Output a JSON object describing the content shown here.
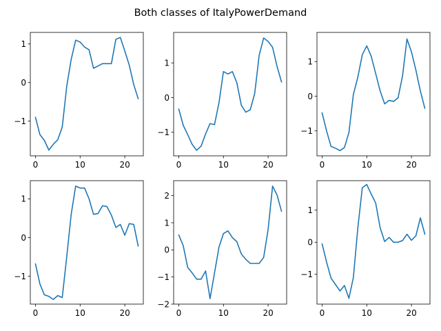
{
  "figure": {
    "title": "Both classes of ItalyPowerDemand"
  },
  "chart_data": [
    {
      "type": "line",
      "title": "",
      "xlabel": "",
      "ylabel": "",
      "xlim": [
        -1.15,
        24.15
      ],
      "ylim": [
        -1.9,
        1.3
      ],
      "xticks": [
        0,
        10,
        20
      ],
      "xtick_labels": [
        "0",
        "10",
        "20"
      ],
      "yticks": [
        -1,
        0,
        1
      ],
      "ytick_labels": [
        "−1",
        "0",
        "1"
      ],
      "grid": false,
      "series": [
        {
          "color": "#1f77b4",
          "x": [
            0,
            1,
            2,
            3,
            4,
            5,
            6,
            7,
            8,
            9,
            10,
            11,
            12,
            13,
            14,
            15,
            16,
            17,
            18,
            19,
            20,
            21,
            22,
            23
          ],
          "values": [
            -0.9,
            -1.35,
            -1.5,
            -1.75,
            -1.6,
            -1.48,
            -1.15,
            -0.1,
            0.6,
            1.1,
            1.05,
            0.92,
            0.85,
            0.37,
            0.43,
            0.49,
            0.49,
            0.49,
            1.12,
            1.17,
            0.82,
            0.45,
            -0.05,
            -0.42
          ]
        }
      ]
    },
    {
      "type": "line",
      "title": "",
      "xlabel": "",
      "ylabel": "",
      "xlim": [
        -1.15,
        24.15
      ],
      "ylim": [
        -1.68,
        1.88
      ],
      "xticks": [
        0,
        10,
        20
      ],
      "xtick_labels": [
        "0",
        "10",
        "20"
      ],
      "yticks": [
        -1,
        0,
        1
      ],
      "ytick_labels": [
        "−1",
        "0",
        "1"
      ],
      "grid": false,
      "series": [
        {
          "color": "#1f77b4",
          "x": [
            0,
            1,
            2,
            3,
            4,
            5,
            6,
            7,
            8,
            9,
            10,
            11,
            12,
            13,
            14,
            15,
            16,
            17,
            18,
            19,
            20,
            21,
            22,
            23
          ],
          "values": [
            -0.33,
            -0.8,
            -1.07,
            -1.35,
            -1.52,
            -1.4,
            -1.05,
            -0.75,
            -0.78,
            -0.15,
            0.75,
            0.68,
            0.75,
            0.43,
            -0.22,
            -0.42,
            -0.35,
            0.12,
            1.22,
            1.72,
            1.62,
            1.45,
            0.9,
            0.45
          ]
        }
      ]
    },
    {
      "type": "line",
      "title": "",
      "xlabel": "",
      "ylabel": "",
      "xlim": [
        -1.15,
        24.15
      ],
      "ylim": [
        -1.72,
        1.84
      ],
      "xticks": [
        0,
        10,
        20
      ],
      "xtick_labels": [
        "0",
        "10",
        "20"
      ],
      "yticks": [
        -1,
        0,
        1
      ],
      "ytick_labels": [
        "−1",
        "0",
        "1"
      ],
      "grid": false,
      "series": [
        {
          "color": "#1f77b4",
          "x": [
            0,
            1,
            2,
            3,
            4,
            5,
            6,
            7,
            8,
            9,
            10,
            11,
            12,
            13,
            14,
            15,
            16,
            17,
            18,
            19,
            20,
            21,
            22,
            23
          ],
          "values": [
            -0.48,
            -1.0,
            -1.45,
            -1.5,
            -1.57,
            -1.48,
            -1.05,
            0.05,
            0.55,
            1.2,
            1.45,
            1.15,
            0.65,
            0.15,
            -0.22,
            -0.12,
            -0.15,
            -0.05,
            0.58,
            1.65,
            1.28,
            0.75,
            0.15,
            -0.35
          ]
        }
      ]
    },
    {
      "type": "line",
      "title": "",
      "xlabel": "",
      "ylabel": "",
      "xlim": [
        -1.15,
        24.15
      ],
      "ylim": [
        -1.72,
        1.47
      ],
      "xticks": [
        0,
        10,
        20
      ],
      "xtick_labels": [
        "0",
        "10",
        "20"
      ],
      "yticks": [
        -1,
        0,
        1
      ],
      "ytick_labels": [
        "−1",
        "0",
        "1"
      ],
      "grid": false,
      "series": [
        {
          "color": "#1f77b4",
          "x": [
            0,
            1,
            2,
            3,
            4,
            5,
            6,
            7,
            8,
            9,
            10,
            11,
            12,
            13,
            14,
            15,
            16,
            17,
            18,
            19,
            20,
            21,
            22,
            23
          ],
          "values": [
            -0.68,
            -1.2,
            -1.48,
            -1.52,
            -1.6,
            -1.5,
            -1.55,
            -0.5,
            0.6,
            1.33,
            1.28,
            1.28,
            1.0,
            0.6,
            0.62,
            0.82,
            0.8,
            0.58,
            0.26,
            0.34,
            0.06,
            0.36,
            0.34,
            -0.22
          ]
        }
      ]
    },
    {
      "type": "line",
      "title": "",
      "xlabel": "",
      "ylabel": "",
      "xlim": [
        -1.15,
        24.15
      ],
      "ylim": [
        -2.0,
        2.55
      ],
      "xticks": [
        0,
        10,
        20
      ],
      "xtick_labels": [
        "0",
        "10",
        "20"
      ],
      "yticks": [
        -2,
        -1,
        0,
        1,
        2
      ],
      "ytick_labels": [
        "−2",
        "−1",
        "0",
        "1",
        "2"
      ],
      "grid": false,
      "series": [
        {
          "color": "#1f77b4",
          "x": [
            0,
            1,
            2,
            3,
            4,
            5,
            6,
            7,
            8,
            9,
            10,
            11,
            12,
            13,
            14,
            15,
            16,
            17,
            18,
            19,
            20,
            21,
            22,
            23
          ],
          "values": [
            0.55,
            0.15,
            -0.65,
            -0.85,
            -1.08,
            -1.08,
            -0.78,
            -1.8,
            -0.85,
            0.1,
            0.6,
            0.7,
            0.45,
            0.3,
            -0.15,
            -0.35,
            -0.5,
            -0.5,
            -0.5,
            -0.28,
            0.75,
            2.35,
            2.02,
            1.42
          ]
        }
      ]
    },
    {
      "type": "line",
      "title": "",
      "xlabel": "",
      "ylabel": "",
      "xlim": [
        -1.15,
        24.15
      ],
      "ylim": [
        -1.93,
        1.92
      ],
      "xticks": [
        0,
        10,
        20
      ],
      "xtick_labels": [
        "0",
        "10",
        "20"
      ],
      "yticks": [
        -1,
        0,
        1
      ],
      "ytick_labels": [
        "−1",
        "0",
        "1"
      ],
      "grid": false,
      "series": [
        {
          "color": "#1f77b4",
          "x": [
            0,
            1,
            2,
            3,
            4,
            5,
            6,
            7,
            8,
            9,
            10,
            11,
            12,
            13,
            14,
            15,
            16,
            17,
            18,
            19,
            20,
            21,
            22,
            23
          ],
          "values": [
            -0.05,
            -0.62,
            -1.12,
            -1.32,
            -1.52,
            -1.35,
            -1.75,
            -1.1,
            0.45,
            1.7,
            1.8,
            1.5,
            1.22,
            0.45,
            0.02,
            0.15,
            0.0,
            0.0,
            0.05,
            0.25,
            0.06,
            0.2,
            0.76,
            0.25
          ]
        }
      ]
    }
  ]
}
